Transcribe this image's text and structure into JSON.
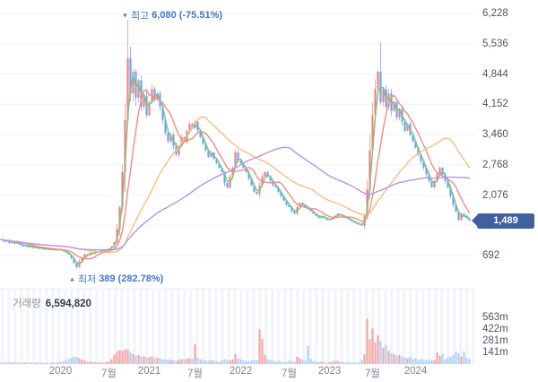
{
  "chart_data": {
    "type": "candlestick",
    "title": "",
    "high_annotation": {
      "marker": "▼",
      "label": "최고",
      "value": "6,080",
      "change": "(-75.51%)"
    },
    "low_annotation": {
      "marker": "▲",
      "label": "최저",
      "value": "389",
      "change": "(282.78%)"
    },
    "volume_header": {
      "label": "거래량",
      "value": "6,594,820"
    },
    "current_price": {
      "label": "1,489",
      "value": 1489
    },
    "price_axis": {
      "labels": [
        "6,228",
        "5,536",
        "4,844",
        "4,152",
        "3,460",
        "2,768",
        "2,076",
        "1,384",
        "692"
      ],
      "values": [
        6228,
        5536,
        4844,
        4152,
        3460,
        2768,
        2076,
        1384,
        692
      ]
    },
    "volume_axis": {
      "labels": [
        "563m",
        "422m",
        "281m",
        "141m"
      ],
      "values": [
        563,
        422,
        281,
        141
      ]
    },
    "x_axis": [
      {
        "label": "2020",
        "index": 22
      },
      {
        "label": "7월",
        "index": 40
      },
      {
        "label": "2021",
        "index": 55
      },
      {
        "label": "7월",
        "index": 72
      },
      {
        "label": "2022",
        "index": 89
      },
      {
        "label": "7월",
        "index": 107
      },
      {
        "label": "2023",
        "index": 122
      },
      {
        "label": "7월",
        "index": 138
      },
      {
        "label": "2024",
        "index": 154
      }
    ],
    "ma_lines": [
      {
        "name": "short",
        "period": 3,
        "color": "#7cc47d"
      },
      {
        "name": "mid",
        "period": 8,
        "color": "#f48a89"
      },
      {
        "name": "long",
        "period": 30,
        "color": "#f6bd82"
      },
      {
        "name": "longest",
        "period": 62,
        "color": "#b793ea"
      }
    ],
    "candles": {
      "closes": [
        1060,
        1010,
        1045,
        980,
        1020,
        960,
        990,
        930,
        900,
        935,
        880,
        905,
        860,
        890,
        845,
        870,
        830,
        855,
        815,
        840,
        810,
        835,
        820,
        790,
        760,
        720,
        640,
        520,
        430,
        560,
        650,
        720,
        700,
        760,
        740,
        790,
        770,
        810,
        790,
        830,
        855,
        900,
        1000,
        1300,
        1800,
        2600,
        3800,
        5200,
        4400,
        4900,
        4300,
        4700,
        4100,
        4350,
        3900,
        4200,
        4500,
        4250,
        4400,
        4100,
        3800,
        3500,
        3300,
        3450,
        3200,
        3000,
        3200,
        3400,
        3300,
        3550,
        3700,
        3600,
        3750,
        3550,
        3400,
        3250,
        3100,
        2950,
        3050,
        2900,
        2800,
        2700,
        2600,
        2350,
        2250,
        2500,
        2700,
        3050,
        2850,
        2800,
        2700,
        2600,
        2450,
        2300,
        2150,
        2100,
        2300,
        2500,
        2600,
        2500,
        2400,
        2300,
        2250,
        2150,
        2050,
        1950,
        1850,
        1800,
        1700,
        1650,
        1800,
        1900,
        1850,
        1800,
        1750,
        1700,
        1650,
        1600,
        1550,
        1600,
        1550,
        1500,
        1520,
        1560,
        1600,
        1650,
        1620,
        1580,
        1550,
        1520,
        1480,
        1450,
        1420,
        1400,
        1380,
        1600,
        2200,
        3100,
        3900,
        4500,
        4900,
        4200,
        4500,
        4100,
        4400,
        4000,
        4200,
        3850,
        4050,
        3750,
        3550,
        3700,
        3450,
        3300,
        3150,
        3000,
        2850,
        2700,
        2550,
        2400,
        2250,
        2400,
        2550,
        2700,
        2550,
        2400,
        2250,
        2050,
        1850,
        1700,
        1500,
        1650,
        1600,
        1540,
        1489
      ],
      "volumes_m": [
        18,
        22,
        15,
        25,
        17,
        20,
        14,
        19,
        16,
        21,
        15,
        18,
        13,
        17,
        14,
        16,
        12,
        15,
        13,
        16,
        14,
        18,
        25,
        30,
        45,
        60,
        75,
        90,
        85,
        70,
        55,
        45,
        35,
        30,
        28,
        25,
        22,
        24,
        20,
        26,
        30,
        60,
        110,
        150,
        170,
        160,
        180,
        175,
        140,
        120,
        100,
        110,
        90,
        95,
        80,
        85,
        90,
        75,
        80,
        70,
        60,
        55,
        50,
        55,
        45,
        40,
        50,
        60,
        55,
        65,
        70,
        60,
        240,
        80,
        60,
        50,
        45,
        40,
        50,
        40,
        35,
        30,
        40,
        60,
        50,
        45,
        55,
        120,
        70,
        55,
        45,
        40,
        35,
        40,
        50,
        45,
        420,
        300,
        110,
        60,
        50,
        40,
        30,
        35,
        30,
        25,
        30,
        40,
        35,
        30,
        90,
        70,
        50,
        45,
        220,
        60,
        35,
        30,
        25,
        30,
        25,
        20,
        25,
        30,
        35,
        40,
        30,
        25,
        20,
        22,
        20,
        18,
        16,
        20,
        50,
        120,
        550,
        300,
        430,
        260,
        350,
        280,
        200,
        230,
        160,
        130,
        120,
        100,
        110,
        90,
        80,
        70,
        90,
        60,
        70,
        50,
        60,
        45,
        55,
        40,
        50,
        45,
        140,
        100,
        120,
        60,
        80,
        90,
        110,
        150,
        130,
        90,
        150,
        80,
        60
      ],
      "overrides": {
        "28": {
          "low": 389
        },
        "47": {
          "high": 6080
        },
        "141": {
          "high": 5570
        }
      }
    },
    "colors": {
      "up": "#f3807f",
      "down": "#68a6f5",
      "up_wick": "#f5a9a8",
      "down_wick": "#8fbbf8",
      "vol_up": "#f3a8a7",
      "vol_down": "#b3d0f7",
      "grid": "#f0f2f5",
      "stripe": "#f3f5f9",
      "separator": "#e8ebef",
      "badge_bg": "#41609e",
      "badge_text": "#ffffff",
      "annotation": "#4a74c8",
      "axis_text": "#4b5563",
      "x_axis_text": "#7b8494",
      "volume_label": "#8b95a1",
      "volume_value": "#333d4b"
    }
  }
}
